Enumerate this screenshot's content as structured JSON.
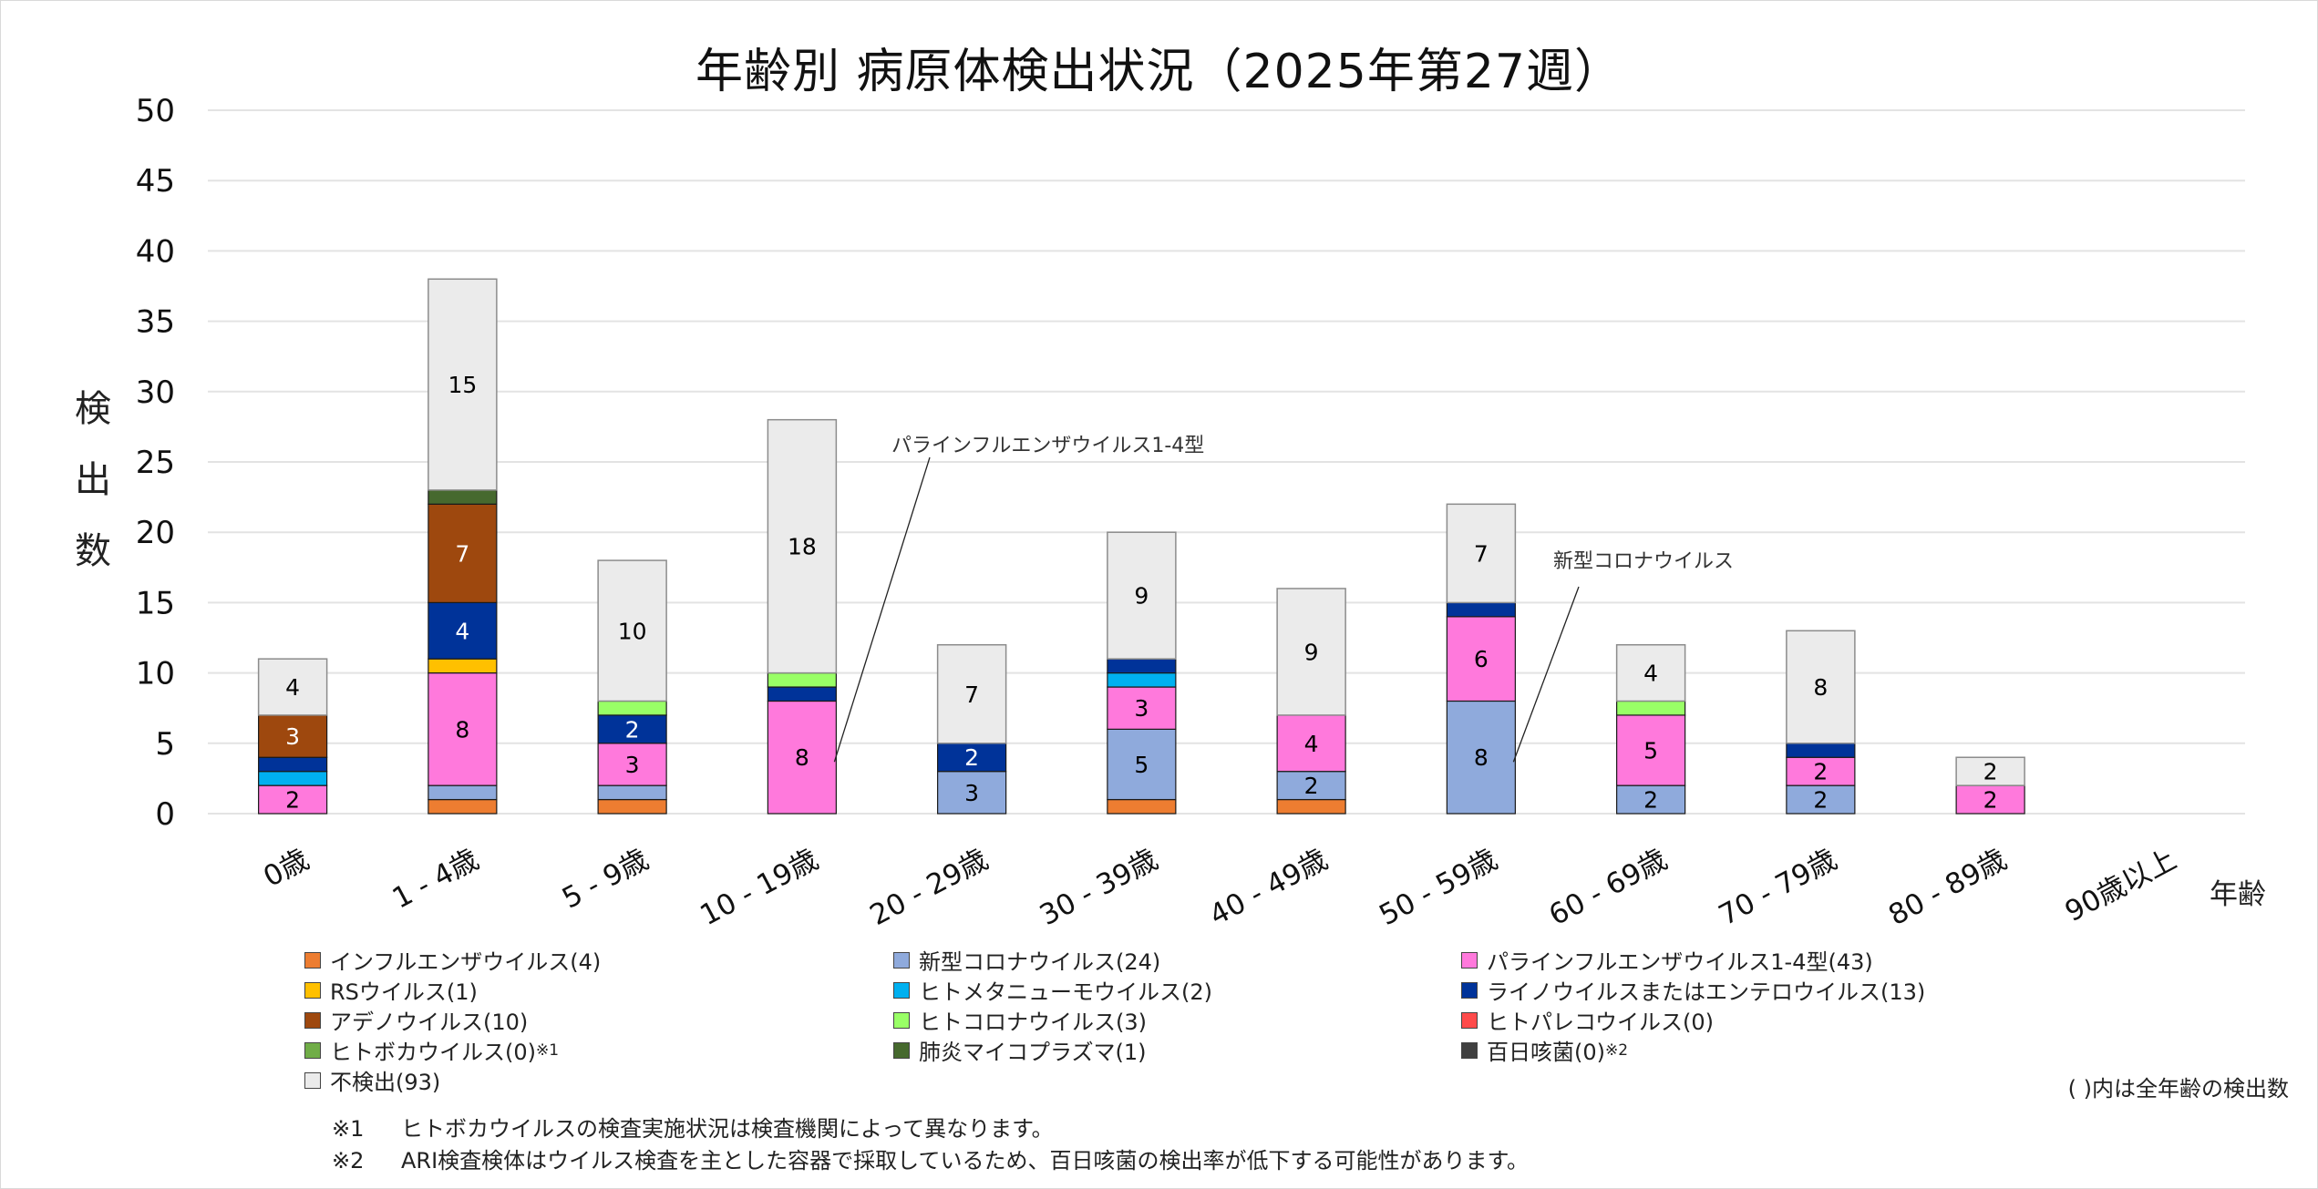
{
  "chart_data": {
    "type": "bar",
    "stacked": true,
    "title": "年齢別 病原体検出状況（2025年第27週）",
    "xlabel": "年齢",
    "ylabel": "検出数",
    "ylim": [
      0,
      50
    ],
    "yticks": [
      0,
      5,
      10,
      15,
      20,
      25,
      30,
      35,
      40,
      45,
      50
    ],
    "grid": true,
    "legend_position": "bottom",
    "categories": [
      "0歳",
      "1 - 4歳",
      "5 - 9歳",
      "10 - 19歳",
      "20 - 29歳",
      "30 - 39歳",
      "40 - 49歳",
      "50 - 59歳",
      "60 - 69歳",
      "70 - 79歳",
      "80 - 89歳",
      "90歳以上"
    ],
    "series": [
      {
        "name": "インフルエンザウイルス",
        "total": 4,
        "color": "#ED7D31",
        "label_color": "#000000",
        "values": [
          0,
          1,
          1,
          0,
          0,
          1,
          1,
          0,
          0,
          0,
          0,
          0
        ]
      },
      {
        "name": "新型コロナウイルス",
        "total": 24,
        "color": "#8FAADC",
        "label_color": "#000000",
        "values": [
          0,
          1,
          1,
          0,
          3,
          5,
          2,
          8,
          2,
          2,
          0,
          0
        ]
      },
      {
        "name": "パラインフルエンザウイルス1-4型",
        "total": 43,
        "color": "#FF79DC",
        "label_color": "#000000",
        "values": [
          2,
          8,
          3,
          8,
          0,
          3,
          4,
          6,
          5,
          2,
          2,
          0
        ]
      },
      {
        "name": "RSウイルス",
        "total": 1,
        "color": "#FFC000",
        "label_color": "#000000",
        "values": [
          0,
          1,
          0,
          0,
          0,
          0,
          0,
          0,
          0,
          0,
          0,
          0
        ]
      },
      {
        "name": "ヒトメタニューモウイルス",
        "total": 2,
        "color": "#00B0F0",
        "label_color": "#000000",
        "values": [
          1,
          0,
          0,
          0,
          0,
          1,
          0,
          0,
          0,
          0,
          0,
          0
        ]
      },
      {
        "name": "ライノウイルスまたはエンテロウイルス",
        "total": 13,
        "color": "#003399",
        "label_color": "#FFFFFF",
        "values": [
          1,
          4,
          2,
          1,
          2,
          1,
          0,
          1,
          0,
          1,
          0,
          0
        ]
      },
      {
        "name": "アデノウイルス",
        "total": 10,
        "color": "#9E480E",
        "label_color": "#FFFFFF",
        "values": [
          3,
          7,
          0,
          0,
          0,
          0,
          0,
          0,
          0,
          0,
          0,
          0
        ]
      },
      {
        "name": "ヒトコロナウイルス",
        "total": 3,
        "color": "#99FF66",
        "label_color": "#000000",
        "values": [
          0,
          0,
          1,
          1,
          0,
          0,
          0,
          0,
          1,
          0,
          0,
          0
        ]
      },
      {
        "name": "ヒトパレコウイルス",
        "total": 0,
        "color": "#FF4B4B",
        "label_color": "#000000",
        "values": [
          0,
          0,
          0,
          0,
          0,
          0,
          0,
          0,
          0,
          0,
          0,
          0
        ]
      },
      {
        "name": "ヒトボカウイルス",
        "total": 0,
        "note": "※1",
        "color": "#70AD47",
        "label_color": "#000000",
        "values": [
          0,
          0,
          0,
          0,
          0,
          0,
          0,
          0,
          0,
          0,
          0,
          0
        ]
      },
      {
        "name": "肺炎マイコプラズマ",
        "total": 1,
        "color": "#46692E",
        "label_color": "#FFFFFF",
        "values": [
          0,
          1,
          0,
          0,
          0,
          0,
          0,
          0,
          0,
          0,
          0,
          0
        ]
      },
      {
        "name": "百日咳菌",
        "total": 0,
        "note": "※2",
        "color": "#404040",
        "label_color": "#FFFFFF",
        "values": [
          0,
          0,
          0,
          0,
          0,
          0,
          0,
          0,
          0,
          0,
          0,
          0
        ]
      },
      {
        "name": "不検出",
        "total": 93,
        "color": "#EBEBEB",
        "label_color": "#000000",
        "values": [
          4,
          15,
          10,
          18,
          7,
          9,
          9,
          7,
          4,
          8,
          2,
          0
        ]
      }
    ],
    "totals": [
      11,
      38,
      18,
      28,
      12,
      20,
      16,
      22,
      12,
      13,
      4,
      0
    ],
    "annotations": [
      {
        "text": "パラインフルエンザウイルス1-4型",
        "category": "10 - 19歳",
        "series": "パラインフルエンザウイルス1-4型"
      },
      {
        "text": "新型コロナウイルス",
        "category": "50 - 59歳",
        "series": "新型コロナウイルス"
      }
    ]
  },
  "legend": {
    "rows": [
      [
        "インフルエンザウイルス(4)",
        "新型コロナウイルス(24)",
        "パラインフルエンザウイルス1-4型(43)"
      ],
      [
        "RSウイルス(1)",
        "ヒトメタニューモウイルス(2)",
        "ライノウイルスまたはエンテロウイルス(13)"
      ],
      [
        "アデノウイルス(10)",
        "ヒトコロナウイルス(3)",
        "ヒトパレコウイルス(0)"
      ],
      [
        "ヒトボカウイルス(0)",
        "肺炎マイコプラズマ(1)",
        "百日咳菌(0)"
      ],
      [
        "不検出(93)"
      ]
    ],
    "row_colors": [
      [
        "#ED7D31",
        "#8FAADC",
        "#FF79DC"
      ],
      [
        "#FFC000",
        "#00B0F0",
        "#003399"
      ],
      [
        "#9E480E",
        "#99FF66",
        "#FF4B4B"
      ],
      [
        "#70AD47",
        "#46692E",
        "#404040"
      ],
      [
        "#EBEBEB"
      ]
    ],
    "row_notes": [
      [
        "",
        "",
        ""
      ],
      [
        "",
        "",
        ""
      ],
      [
        "",
        "",
        ""
      ],
      [
        "※1",
        "",
        "※2"
      ],
      [
        ""
      ]
    ],
    "footnote": "( )内は全年齢の検出数"
  },
  "notes": [
    {
      "mark": "※1",
      "text": "ヒトボカウイルスの検査実施状況は検査機関によって異なります。"
    },
    {
      "mark": "※2",
      "text": "ARI検査検体はウイルス検査を主とした容器で採取しているため、百日咳菌の検出率が低下する可能性があります。"
    }
  ]
}
